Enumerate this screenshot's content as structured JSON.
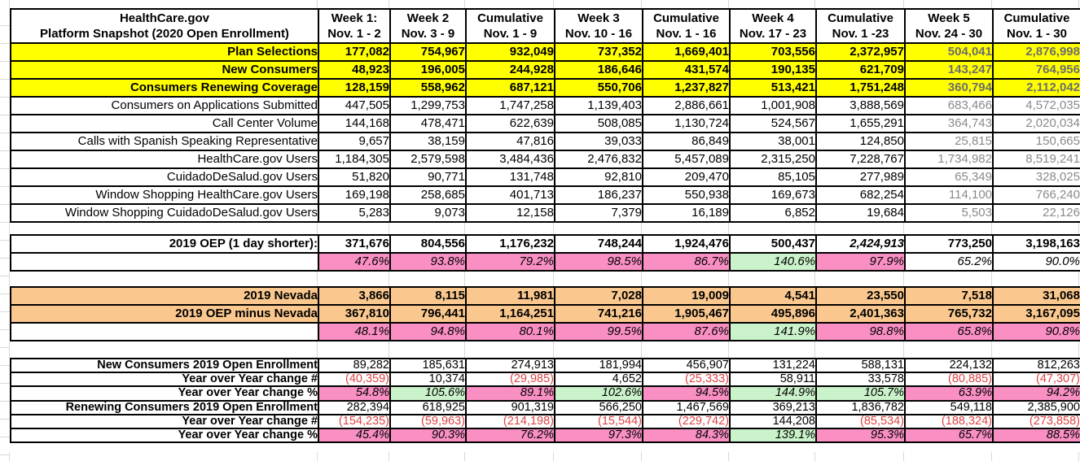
{
  "sheet_header": {
    "title_line1": "HealthCare.gov",
    "title_line2": "Platform Snapshot (2020 Open Enrollment)",
    "columns": [
      {
        "label": "Week 1:",
        "dates": "Nov. 1 - 2"
      },
      {
        "label": "Week 2",
        "dates": "Nov. 3 - 9"
      },
      {
        "label": "Cumulative",
        "dates": "Nov. 1 - 9"
      },
      {
        "label": "Week 3",
        "dates": "Nov. 10 - 16"
      },
      {
        "label": "Cumulative",
        "dates": "Nov. 1 - 16"
      },
      {
        "label": "Week 4",
        "dates": "Nov. 17 - 23"
      },
      {
        "label": "Cumulative",
        "dates": "Nov. 1 -23"
      },
      {
        "label": "Week 5",
        "dates": "Nov. 24 - 30"
      },
      {
        "label": "Cumulative",
        "dates": "Nov. 1 - 30"
      }
    ]
  },
  "metrics": {
    "gray_value_columns": [
      7,
      8
    ],
    "rows": [
      {
        "label": "Plan Selections",
        "highlight": true,
        "values": [
          "177,082",
          "754,967",
          "932,049",
          "737,352",
          "1,669,401",
          "703,556",
          "2,372,957",
          "504,041",
          "2,876,998"
        ]
      },
      {
        "label": "New Consumers",
        "highlight": true,
        "values": [
          "48,923",
          "196,005",
          "244,928",
          "186,646",
          "431,574",
          "190,135",
          "621,709",
          "143,247",
          "764,956"
        ]
      },
      {
        "label": "Consumers Renewing Coverage",
        "highlight": true,
        "values": [
          "128,159",
          "558,962",
          "687,121",
          "550,706",
          "1,237,827",
          "513,421",
          "1,751,248",
          "360,794",
          "2,112,042"
        ]
      },
      {
        "label": "Consumers on Applications Submitted",
        "highlight": false,
        "values": [
          "447,505",
          "1,299,753",
          "1,747,258",
          "1,139,403",
          "2,886,661",
          "1,001,908",
          "3,888,569",
          "683,466",
          "4,572,035"
        ]
      },
      {
        "label": "Call Center Volume",
        "highlight": false,
        "values": [
          "144,168",
          "478,471",
          "622,639",
          "508,085",
          "1,130,724",
          "524,567",
          "1,655,291",
          "364,743",
          "2,020,034"
        ]
      },
      {
        "label": "Calls with Spanish Speaking Representative",
        "highlight": false,
        "values": [
          "9,657",
          "38,159",
          "47,816",
          "39,033",
          "86,849",
          "38,001",
          "124,850",
          "25,815",
          "150,665"
        ]
      },
      {
        "label": "HealthCare.gov Users",
        "highlight": false,
        "values": [
          "1,184,305",
          "2,579,598",
          "3,484,436",
          "2,476,832",
          "5,457,089",
          "2,315,250",
          "7,228,767",
          "1,734,982",
          "8,519,241"
        ]
      },
      {
        "label": "CuidadoDeSalud.gov Users",
        "highlight": false,
        "values": [
          "51,820",
          "90,771",
          "131,748",
          "92,810",
          "209,470",
          "85,105",
          "277,989",
          "65,349",
          "328,025"
        ]
      },
      {
        "label": "Window Shopping HealthCare.gov Users",
        "highlight": false,
        "values": [
          "169,198",
          "258,685",
          "401,713",
          "186,237",
          "550,938",
          "169,673",
          "682,254",
          "114,100",
          "766,240"
        ]
      },
      {
        "label": "Window Shopping CuidadoDeSalud.gov Users",
        "highlight": false,
        "values": [
          "5,283",
          "9,073",
          "12,158",
          "7,379",
          "16,189",
          "6,852",
          "19,684",
          "5,503",
          "22,126"
        ]
      }
    ]
  },
  "oep_2019": {
    "row": {
      "label": "2019 OEP (1 day shorter):",
      "values": [
        "371,676",
        "804,556",
        "1,176,232",
        "748,244",
        "1,924,476",
        "500,437",
        "2,424,913",
        "773,250",
        "3,198,163"
      ],
      "italic_indexes": [
        6
      ]
    },
    "pct_row": {
      "values": [
        "47.6%",
        "93.8%",
        "79.2%",
        "98.5%",
        "86.7%",
        "140.6%",
        "97.9%",
        "65.2%",
        "90.0%"
      ],
      "fills": [
        "pink",
        "pink",
        "pink",
        "pink",
        "pink",
        "green",
        "pink",
        "none",
        "none"
      ]
    }
  },
  "nevada_2019": {
    "rows": [
      {
        "label": "2019 Nevada",
        "values": [
          "3,866",
          "8,115",
          "11,981",
          "7,028",
          "19,009",
          "4,541",
          "23,550",
          "7,518",
          "31,068"
        ]
      },
      {
        "label": "2019 OEP minus Nevada",
        "values": [
          "367,810",
          "796,441",
          "1,164,251",
          "741,216",
          "1,905,467",
          "495,896",
          "2,401,363",
          "765,732",
          "3,167,095"
        ]
      }
    ],
    "pct_row": {
      "values": [
        "48.1%",
        "94.8%",
        "80.1%",
        "99.5%",
        "87.6%",
        "141.9%",
        "98.8%",
        "65.8%",
        "90.8%"
      ],
      "fills": [
        "pink",
        "pink",
        "pink",
        "pink",
        "pink",
        "green",
        "pink",
        "pink",
        "pink"
      ]
    }
  },
  "year_over_year": {
    "rows": [
      {
        "label": "New Consumers 2019 Open Enrollment",
        "type": "base",
        "values": [
          "89,282",
          "185,631",
          "274,913",
          "181,994",
          "456,907",
          "131,224",
          "588,131",
          "224,132",
          "812,263"
        ]
      },
      {
        "label": "Year over Year change #",
        "type": "change",
        "values": [
          "(40,359)",
          "10,374",
          "(29,985)",
          "4,652",
          "(25,333)",
          "58,911",
          "33,578",
          "(80,885)",
          "(47,307)"
        ]
      },
      {
        "label": "Year over Year change %",
        "type": "pct",
        "values": [
          "54.8%",
          "105.6%",
          "89.1%",
          "102.6%",
          "94.5%",
          "144.9%",
          "105.7%",
          "63.9%",
          "94.2%"
        ],
        "fills": [
          "pink",
          "green",
          "pink",
          "green",
          "pink",
          "green",
          "green",
          "pink",
          "pink"
        ]
      },
      {
        "label": "Renewing Consumers 2019 Open Enrollment",
        "type": "base",
        "values": [
          "282,394",
          "618,925",
          "901,319",
          "566,250",
          "1,467,569",
          "369,213",
          "1,836,782",
          "549,118",
          "2,385,900"
        ]
      },
      {
        "label": "Year over Year change #",
        "type": "change",
        "values": [
          "(154,235)",
          "(59,963)",
          "(214,198)",
          "(15,544)",
          "(229,742)",
          "144,208",
          "(85,534)",
          "(188,324)",
          "(273,858)"
        ]
      },
      {
        "label": "Year over Year change %",
        "type": "pct",
        "values": [
          "45.4%",
          "90.3%",
          "76.2%",
          "97.3%",
          "84.3%",
          "139.1%",
          "95.3%",
          "65.7%",
          "88.5%"
        ],
        "fills": [
          "pink",
          "pink",
          "pink",
          "pink",
          "pink",
          "green",
          "pink",
          "pink",
          "pink"
        ]
      }
    ]
  },
  "colors": {
    "yellow": "#FFFF00",
    "orange": "#FAC88E",
    "pink": "#F98FC3",
    "green": "#CBF3CB",
    "red": "#DD4444",
    "gray": "#8A8A8A"
  }
}
